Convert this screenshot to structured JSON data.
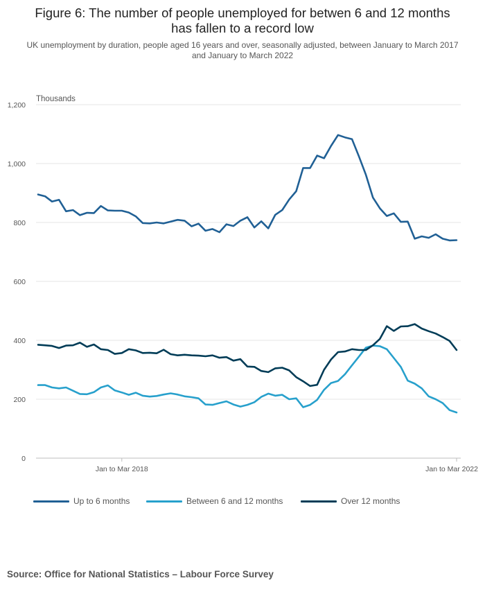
{
  "title_line1": "Figure 6: The number of people unemployed for betwen 6 and 12 months",
  "title_line2": "has fallen to a record low",
  "subtitle": "UK unemployment by duration, people aged 16 years and over, seasonally adjusted, between January to March 2017 and January to March 2022",
  "source": "Source: Office for National Statistics – Labour Force Survey",
  "chart_data": {
    "type": "line",
    "ylabel": "Thousands",
    "xlabel": "",
    "ylim": [
      0,
      1200
    ],
    "yticks": [
      0,
      200,
      400,
      600,
      800,
      1000,
      1200
    ],
    "ytick_labels": [
      "0",
      "200",
      "400",
      "600",
      "800",
      "1,000",
      "1,200"
    ],
    "x_tick_labels": [
      {
        "index": 12,
        "label": "Jan to Mar 2018"
      },
      {
        "index": 60,
        "label": "Jan to Mar 2022"
      }
    ],
    "x_note": "61 rolling three-month periods from Jan to Mar 2017 (index 0) to Jan to Mar 2022 (index 60)",
    "grid": true,
    "legend_position": "bottom",
    "series": [
      {
        "name": "Up to 6 months",
        "color": "#206095",
        "values": [
          895,
          889,
          871,
          877,
          838,
          842,
          825,
          833,
          832,
          856,
          841,
          840,
          840,
          834,
          821,
          798,
          797,
          800,
          797,
          803,
          809,
          806,
          787,
          796,
          772,
          778,
          767,
          794,
          788,
          806,
          818,
          783,
          804,
          780,
          826,
          842,
          878,
          906,
          985,
          985,
          1027,
          1018,
          1060,
          1097,
          1089,
          1083,
          1024,
          962,
          885,
          848,
          822,
          831,
          802,
          803,
          745,
          753,
          748,
          760,
          745,
          739,
          740
        ]
      },
      {
        "name": "Between 6 and 12 months",
        "color": "#27a0cc",
        "values": [
          248,
          248,
          240,
          237,
          240,
          229,
          218,
          217,
          224,
          240,
          247,
          230,
          223,
          215,
          222,
          212,
          209,
          211,
          216,
          220,
          216,
          210,
          207,
          203,
          182,
          181,
          187,
          193,
          182,
          175,
          181,
          190,
          208,
          219,
          212,
          215,
          200,
          203,
          173,
          181,
          198,
          232,
          255,
          262,
          285,
          315,
          345,
          375,
          382,
          380,
          370,
          340,
          310,
          263,
          253,
          237,
          210,
          200,
          187,
          163,
          155
        ]
      },
      {
        "name": "Over 12 months",
        "color": "#003c57",
        "values": [
          385,
          383,
          381,
          374,
          382,
          383,
          392,
          378,
          386,
          370,
          367,
          354,
          357,
          370,
          366,
          357,
          358,
          356,
          368,
          353,
          349,
          351,
          349,
          348,
          346,
          349,
          341,
          343,
          331,
          336,
          311,
          310,
          296,
          292,
          305,
          307,
          298,
          275,
          261,
          245,
          249,
          300,
          335,
          360,
          362,
          370,
          367,
          367,
          383,
          405,
          448,
          432,
          447,
          448,
          455,
          440,
          431,
          423,
          411,
          398,
          367
        ]
      }
    ]
  }
}
